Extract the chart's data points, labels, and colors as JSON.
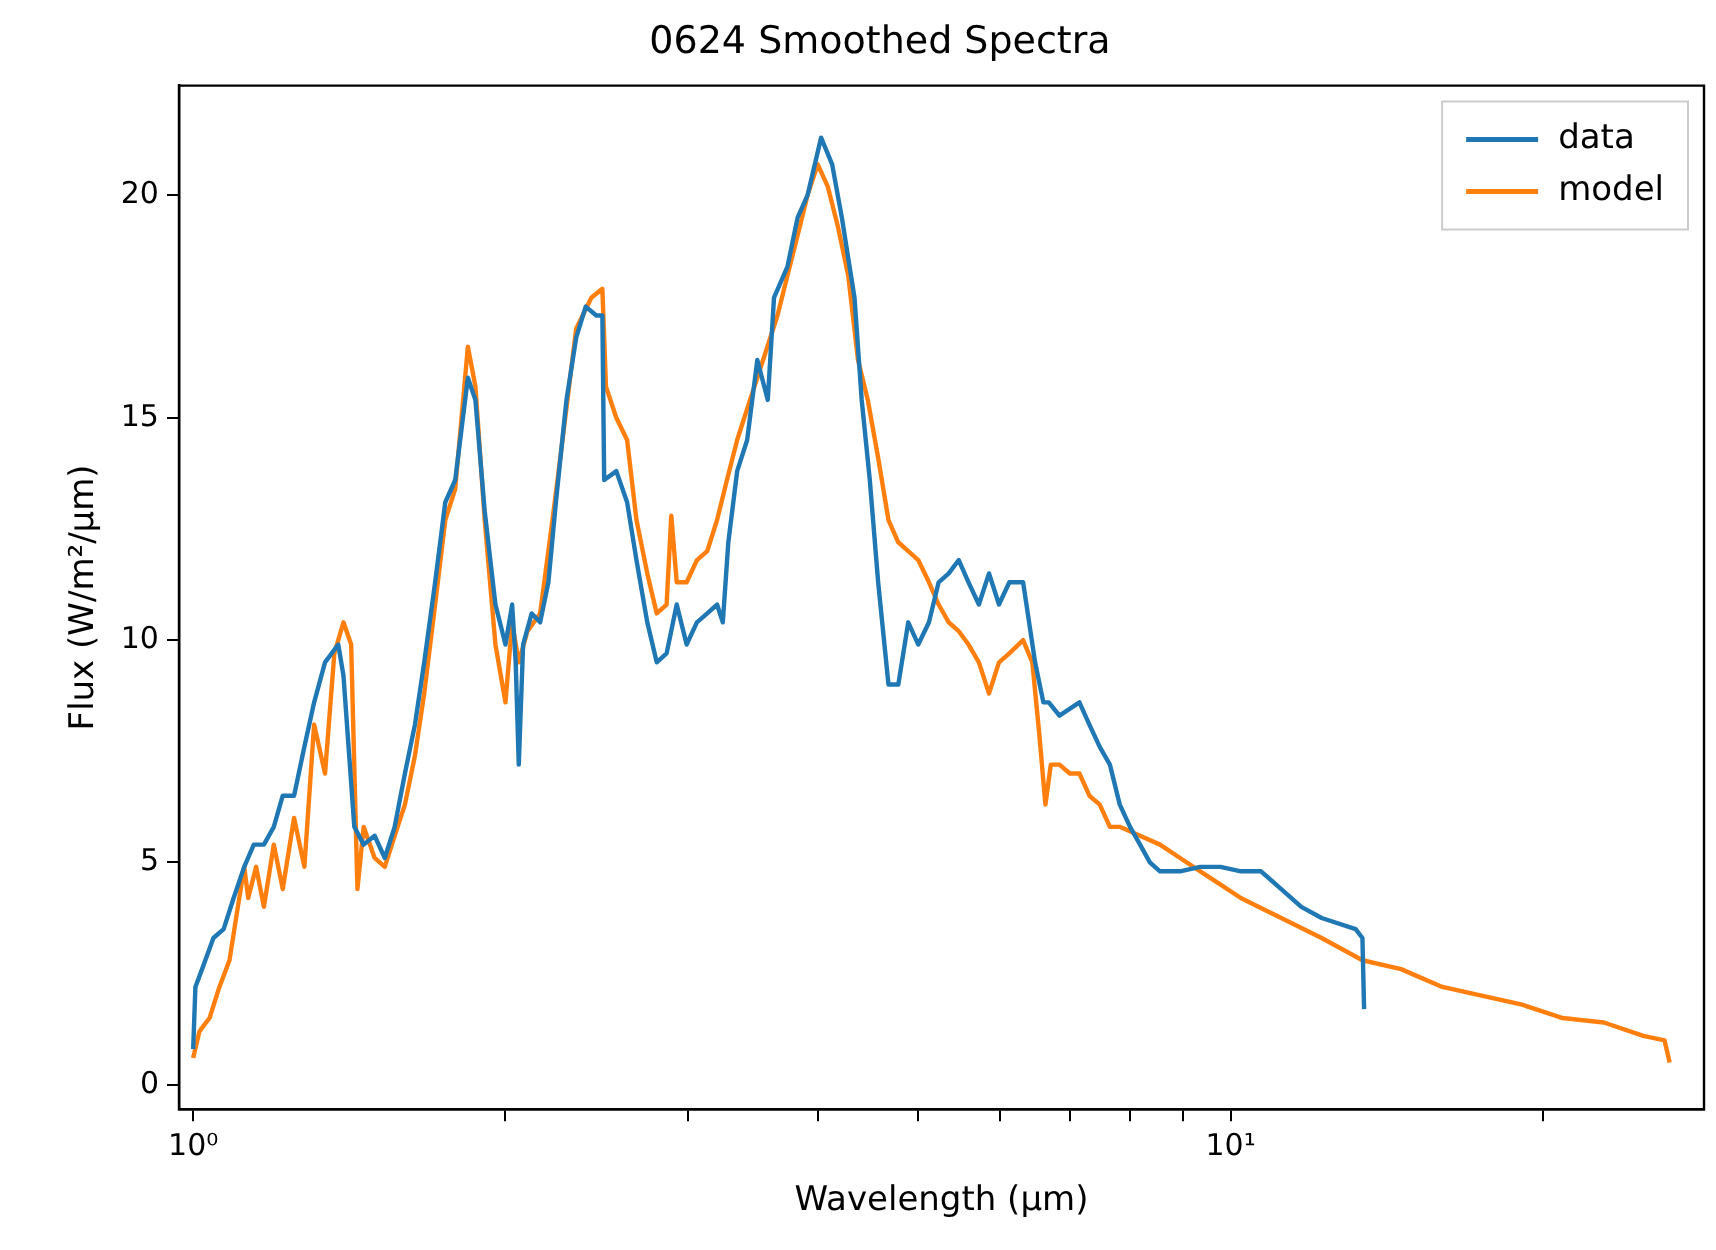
{
  "chart_data": {
    "type": "line",
    "title": "0624 Smoothed Spectra",
    "xlabel": "Wavelength (μm)",
    "ylabel": "Flux (W/m²/μm)",
    "log": "x",
    "grid": false,
    "legend": "top right",
    "marker": "none",
    "line_style": "solid",
    "xlim": [
      0.969,
      28.6
    ],
    "ylim": [
      -0.55,
      22.47
    ],
    "xticks": [
      {
        "value": 1,
        "label": "10⁰"
      },
      {
        "value": 2,
        "label": null
      },
      {
        "value": 3,
        "label": null
      },
      {
        "value": 4,
        "label": null
      },
      {
        "value": 5,
        "label": null
      },
      {
        "value": 6,
        "label": null
      },
      {
        "value": 7,
        "label": null
      },
      {
        "value": 8,
        "label": null
      },
      {
        "value": 9,
        "label": null
      },
      {
        "value": 10,
        "label": "10¹"
      },
      {
        "value": 20,
        "label": null
      }
    ],
    "yticks": [
      0,
      5,
      10,
      15,
      20
    ],
    "series": [
      {
        "name": "data",
        "color": "#1f77b4",
        "x": [
          1.0,
          1.005,
          1.02,
          1.046,
          1.07,
          1.094,
          1.12,
          1.144,
          1.17,
          1.196,
          1.22,
          1.251,
          1.28,
          1.308,
          1.34,
          1.38,
          1.396,
          1.43,
          1.46,
          1.496,
          1.53,
          1.564,
          1.6,
          1.636,
          1.67,
          1.711,
          1.75,
          1.789,
          1.84,
          1.871,
          1.91,
          1.956,
          2.0,
          2.03,
          2.046,
          2.06,
          2.08,
          2.12,
          2.16,
          2.2,
          2.237,
          2.29,
          2.34,
          2.39,
          2.447,
          2.48,
          2.49,
          2.558,
          2.62,
          2.675,
          2.74,
          2.798,
          2.86,
          2.925,
          2.99,
          3.059,
          3.13,
          3.199,
          3.24,
          3.28,
          3.345,
          3.42,
          3.498,
          3.58,
          3.63,
          3.74,
          3.825,
          3.91,
          4.03,
          4.13,
          4.22,
          4.34,
          4.41,
          4.49,
          4.574,
          4.68,
          4.783,
          4.89,
          5.0,
          5.12,
          5.231,
          5.35,
          5.47,
          5.59,
          5.72,
          5.85,
          5.981,
          6.12,
          6.31,
          6.48,
          6.6,
          6.68,
          6.84,
          7.15,
          7.31,
          7.48,
          7.65,
          7.82,
          8.0,
          8.18,
          8.36,
          8.55,
          8.94,
          9.35,
          9.78,
          10.23,
          10.7,
          11.19,
          11.7,
          12.24,
          13.2,
          13.4,
          13.45
        ],
        "values": [
          0.8,
          2.2,
          2.6,
          3.3,
          3.5,
          4.2,
          4.9,
          5.4,
          5.4,
          5.8,
          6.5,
          6.5,
          7.6,
          8.6,
          9.5,
          9.9,
          9.2,
          5.8,
          5.4,
          5.6,
          5.1,
          5.8,
          7.0,
          8.1,
          9.5,
          11.3,
          13.1,
          13.6,
          15.9,
          15.4,
          12.9,
          10.8,
          9.9,
          10.8,
          9.5,
          7.2,
          9.9,
          10.6,
          10.4,
          11.3,
          13.1,
          15.4,
          16.8,
          17.5,
          17.3,
          17.3,
          13.6,
          13.8,
          13.1,
          11.8,
          10.4,
          9.5,
          9.7,
          10.8,
          9.9,
          10.4,
          10.6,
          10.8,
          10.4,
          12.2,
          13.8,
          14.5,
          16.3,
          15.4,
          17.7,
          18.4,
          19.5,
          20.0,
          21.3,
          20.7,
          19.5,
          17.7,
          15.4,
          13.6,
          11.3,
          9.0,
          9.0,
          10.4,
          9.9,
          10.4,
          11.3,
          11.5,
          11.8,
          11.3,
          10.8,
          11.5,
          10.8,
          11.3,
          11.3,
          9.5,
          8.6,
          8.6,
          8.3,
          8.6,
          8.1,
          7.6,
          7.2,
          6.3,
          5.8,
          5.4,
          5.0,
          4.8,
          4.8,
          4.9,
          4.9,
          4.8,
          4.8,
          4.4,
          4.0,
          3.75,
          3.5,
          3.3,
          1.7
        ]
      },
      {
        "name": "model",
        "color": "#ff7f0e",
        "x": [
          1.0,
          1.014,
          1.037,
          1.06,
          1.084,
          1.1,
          1.12,
          1.13,
          1.15,
          1.17,
          1.196,
          1.22,
          1.251,
          1.28,
          1.308,
          1.34,
          1.368,
          1.396,
          1.42,
          1.44,
          1.46,
          1.496,
          1.53,
          1.564,
          1.6,
          1.636,
          1.67,
          1.711,
          1.75,
          1.789,
          1.84,
          1.871,
          1.91,
          1.956,
          2.0,
          2.03,
          2.06,
          2.1,
          2.16,
          2.22,
          2.27,
          2.34,
          2.42,
          2.48,
          2.5,
          2.558,
          2.62,
          2.675,
          2.74,
          2.798,
          2.86,
          2.89,
          2.925,
          2.99,
          3.059,
          3.13,
          3.199,
          3.27,
          3.345,
          3.42,
          3.498,
          3.658,
          3.74,
          3.825,
          3.91,
          4.0,
          4.09,
          4.183,
          4.28,
          4.374,
          4.47,
          4.574,
          4.68,
          4.783,
          4.89,
          5.0,
          5.12,
          5.231,
          5.35,
          5.47,
          5.59,
          5.72,
          5.85,
          5.981,
          6.12,
          6.31,
          6.44,
          6.54,
          6.63,
          6.71,
          6.84,
          7.0,
          7.15,
          7.31,
          7.48,
          7.65,
          7.82,
          8.18,
          8.55,
          8.94,
          9.35,
          9.78,
          10.23,
          11.19,
          12.24,
          13.4,
          14.6,
          16.0,
          17.5,
          19.1,
          20.9,
          22.9,
          25.0,
          26.2,
          26.5
        ],
        "values": [
          0.6,
          1.2,
          1.5,
          2.2,
          2.8,
          3.75,
          4.9,
          4.2,
          4.9,
          4.0,
          5.4,
          4.4,
          6.0,
          4.9,
          8.1,
          7.0,
          9.7,
          10.4,
          9.9,
          4.4,
          5.8,
          5.1,
          4.9,
          5.6,
          6.3,
          7.4,
          8.8,
          10.8,
          12.7,
          13.4,
          16.6,
          15.7,
          12.7,
          9.9,
          8.6,
          10.4,
          9.5,
          10.2,
          10.6,
          12.7,
          14.5,
          17.0,
          17.7,
          17.9,
          15.7,
          15.0,
          14.5,
          12.7,
          11.5,
          10.6,
          10.8,
          12.8,
          11.3,
          11.3,
          11.8,
          12.0,
          12.7,
          13.6,
          14.5,
          15.2,
          15.9,
          17.3,
          18.2,
          19.1,
          20.0,
          20.7,
          20.2,
          19.3,
          18.2,
          16.3,
          15.4,
          14.1,
          12.7,
          12.2,
          12.0,
          11.8,
          11.3,
          10.8,
          10.4,
          10.2,
          9.9,
          9.5,
          8.8,
          9.5,
          9.7,
          10.0,
          9.5,
          7.9,
          6.3,
          7.2,
          7.2,
          7.0,
          7.0,
          6.5,
          6.3,
          5.8,
          5.8,
          5.6,
          5.4,
          5.1,
          4.8,
          4.5,
          4.2,
          3.75,
          3.3,
          2.8,
          2.6,
          2.2,
          2.0,
          1.8,
          1.5,
          1.4,
          1.1,
          1.0,
          0.5
        ]
      }
    ]
  }
}
